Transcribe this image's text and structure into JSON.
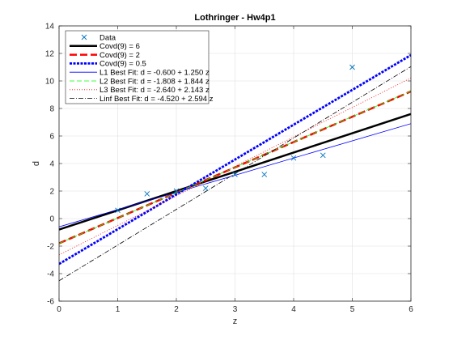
{
  "chart_data": {
    "type": "line",
    "title": "Lothringer - Hw4p1",
    "xlabel": "z",
    "ylabel": "d",
    "xlim": [
      0,
      6
    ],
    "ylim": [
      -6,
      14
    ],
    "xticks": [
      0,
      1,
      2,
      3,
      4,
      5,
      6
    ],
    "yticks": [
      -6,
      -4,
      -2,
      0,
      2,
      4,
      6,
      8,
      10,
      12,
      14
    ],
    "grid": true,
    "legend_position": "top-left",
    "data_points": {
      "name": "Data",
      "marker": "x",
      "color": "#0072bd",
      "x": [
        1,
        1.5,
        2,
        2.5,
        3,
        3.5,
        4,
        4.5,
        5
      ],
      "y": [
        0.6,
        1.8,
        2.0,
        2.2,
        3.2,
        3.2,
        4.4,
        4.6,
        11.0
      ]
    },
    "series": [
      {
        "name": "Covd(9) = 6",
        "intercept": -0.8,
        "slope": 1.4,
        "color": "#000000",
        "width": 2.5,
        "dash": ""
      },
      {
        "name": "Covd(9) = 2",
        "intercept": -1.8,
        "slope": 1.84,
        "color": "#ff0000",
        "width": 2.5,
        "dash": "9,4"
      },
      {
        "name": "Covd(9) = 0.5",
        "intercept": -3.3,
        "slope": 2.53,
        "color": "#0000ff",
        "width": 2.8,
        "dash": "3,1.5"
      },
      {
        "name": "L1 Best Fit: d = -0.600 + 1.250 z",
        "intercept": -0.6,
        "slope": 1.25,
        "color": "#0000ff",
        "width": 0.8,
        "dash": ""
      },
      {
        "name": "L2 Best Fit: d = -1.808 + 1.844 z",
        "intercept": -1.808,
        "slope": 1.844,
        "color": "#00ff00",
        "width": 0.8,
        "dash": "6,3"
      },
      {
        "name": "L3 Best Fit: d = -2.640 + 2.143 z",
        "intercept": -2.64,
        "slope": 2.143,
        "color": "#ff0000",
        "width": 0.8,
        "dash": "1,2"
      },
      {
        "name": "Linf Best Fit: d = -4.520 + 2.594 z",
        "intercept": -4.52,
        "slope": 2.594,
        "color": "#000000",
        "width": 0.8,
        "dash": "6,2,1,2"
      }
    ]
  }
}
